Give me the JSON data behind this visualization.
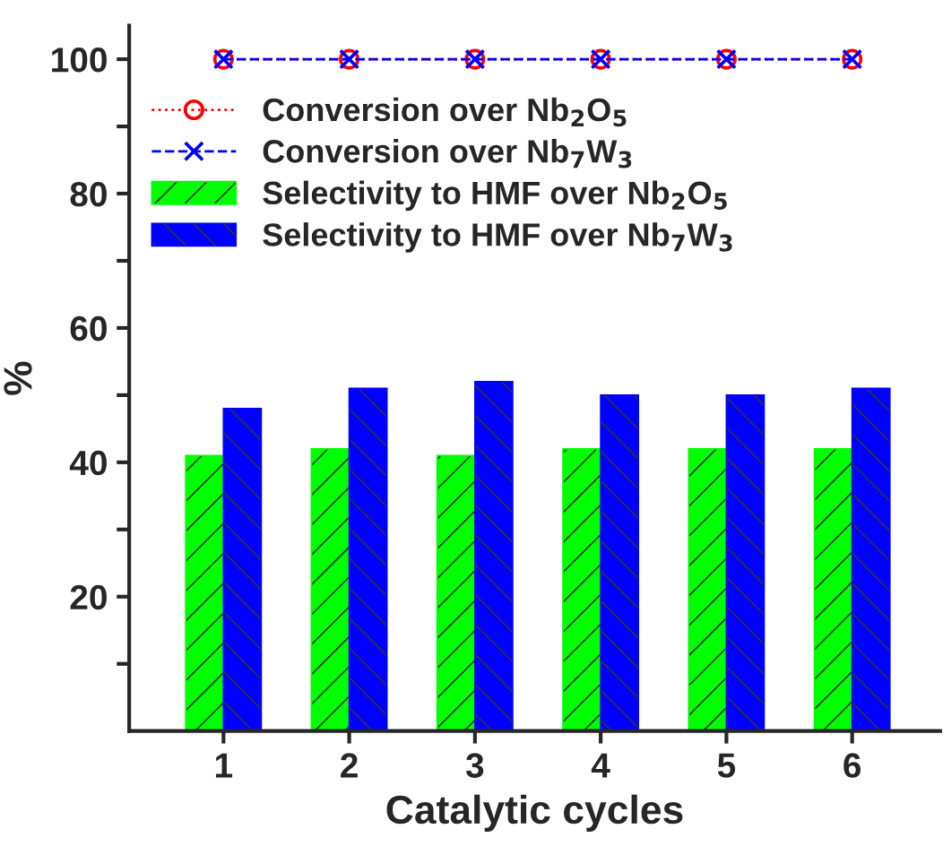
{
  "chart_data": {
    "type": "bar",
    "xlabel": "Catalytic cycles",
    "ylabel": "%",
    "categories": [
      "1",
      "2",
      "3",
      "4",
      "5",
      "6"
    ],
    "series": [
      {
        "name": "Conversion over Nb$_{2}$O$_{5}$",
        "type": "line",
        "color": "#ff0000",
        "marker": "circle",
        "line_style": "dotted",
        "values": [
          100,
          100,
          100,
          100,
          100,
          100
        ]
      },
      {
        "name": "Conversion over Nb$_{7}$W$_{3}$",
        "type": "line",
        "color": "#0000ff",
        "marker": "cross",
        "line_style": "dashed",
        "values": [
          100,
          100,
          100,
          100,
          100,
          100
        ]
      },
      {
        "name": "Selectivity to HMF over Nb$_{2}$O$_{5}$",
        "color": "#00ff00",
        "values": [
          41,
          42,
          41,
          42,
          42,
          42
        ]
      },
      {
        "name": "Selectivity to HMF over Nb$_{7}$W$_{3}$",
        "color": "#0000ff",
        "values": [
          48,
          51,
          52,
          50,
          50,
          51
        ]
      }
    ],
    "ylim": [
      0,
      105
    ],
    "yticks": [
      {
        "value": 10,
        "label": null
      },
      20,
      {
        "value": 30,
        "label": null
      },
      40,
      {
        "value": 50,
        "label": null
      },
      60,
      {
        "value": 70,
        "label": null
      },
      80,
      {
        "value": 90,
        "label": null
      },
      100
    ],
    "legend": "top left",
    "grid": false
  }
}
